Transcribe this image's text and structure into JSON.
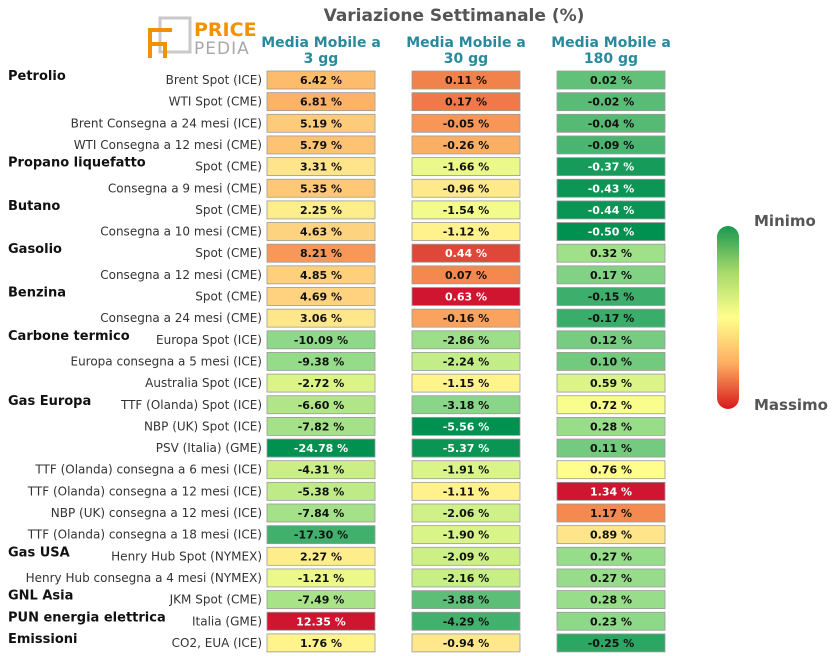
{
  "logo": {
    "line1": "PRICE",
    "line2": "PEDIA"
  },
  "chart_data": {
    "type": "heatmap",
    "title": "Variazione Settimanale (%)",
    "columns": [
      "Media Mobile a 3 gg",
      "Media Mobile a 30 gg",
      "Media Mobile a 180 gg"
    ],
    "column_lines": [
      [
        "Media Mobile a",
        "3 gg"
      ],
      [
        "Media Mobile a",
        "30 gg"
      ],
      [
        "Media Mobile a",
        "180 gg"
      ]
    ],
    "groups": [
      {
        "name": "Petrolio",
        "rows": [
          {
            "label": "Brent Spot (ICE)",
            "values": [
              6.42,
              0.11,
              0.02
            ]
          },
          {
            "label": "WTI Spot (CME)",
            "values": [
              6.81,
              0.17,
              -0.02
            ]
          },
          {
            "label": "Brent Consegna a 24 mesi (ICE)",
            "values": [
              5.19,
              -0.05,
              -0.04
            ]
          },
          {
            "label": "WTI Consegna a 12 mesi (CME)",
            "values": [
              5.79,
              -0.26,
              -0.09
            ]
          }
        ]
      },
      {
        "name": "Propano liquefatto",
        "rows": [
          {
            "label": "Spot (CME)",
            "values": [
              3.31,
              -1.66,
              -0.37
            ]
          },
          {
            "label": "Consegna a 9 mesi (CME)",
            "values": [
              5.35,
              -0.96,
              -0.43
            ]
          }
        ]
      },
      {
        "name": "Butano",
        "rows": [
          {
            "label": "Spot (CME)",
            "values": [
              2.25,
              -1.54,
              -0.44
            ]
          },
          {
            "label": "Consegna a 10 mesi (CME)",
            "values": [
              4.63,
              -1.12,
              -0.5
            ]
          }
        ]
      },
      {
        "name": "Gasolio",
        "rows": [
          {
            "label": "Spot (CME)",
            "values": [
              8.21,
              0.44,
              0.32
            ]
          },
          {
            "label": "Consegna a 12 mesi (CME)",
            "values": [
              4.85,
              0.07,
              0.17
            ]
          }
        ]
      },
      {
        "name": "Benzina",
        "rows": [
          {
            "label": "Spot (CME)",
            "values": [
              4.69,
              0.63,
              -0.15
            ]
          },
          {
            "label": "Consegna a 24 mesi (CME)",
            "values": [
              3.06,
              -0.16,
              -0.17
            ]
          }
        ]
      },
      {
        "name": "Carbone termico",
        "rows": [
          {
            "label": "Europa Spot (ICE)",
            "values": [
              -10.09,
              -2.86,
              0.12
            ]
          },
          {
            "label": "Europa consegna a 5 mesi (ICE)",
            "values": [
              -9.38,
              -2.24,
              0.1
            ]
          },
          {
            "label": "Australia Spot (ICE)",
            "values": [
              -2.72,
              -1.15,
              0.59
            ]
          }
        ]
      },
      {
        "name": "Gas Europa",
        "rows": [
          {
            "label": "TTF (Olanda) Spot (ICE)",
            "values": [
              -6.6,
              -3.18,
              0.72
            ]
          },
          {
            "label": "NBP (UK) Spot (ICE)",
            "values": [
              -7.82,
              -5.56,
              0.28
            ]
          },
          {
            "label": "PSV (Italia) (GME)",
            "values": [
              -24.78,
              -5.37,
              0.11
            ]
          },
          {
            "label": "TTF (Olanda) consegna a 6 mesi (ICE)",
            "values": [
              -4.31,
              -1.91,
              0.76
            ]
          },
          {
            "label": "TTF (Olanda) consegna a 12 mesi (ICE)",
            "values": [
              -5.38,
              -1.11,
              1.34
            ]
          },
          {
            "label": "NBP (UK) consegna a 12 mesi (ICE)",
            "values": [
              -7.84,
              -2.06,
              1.17
            ]
          },
          {
            "label": "TTF (Olanda) consegna a 18 mesi (ICE)",
            "values": [
              -17.3,
              -1.9,
              0.89
            ]
          }
        ]
      },
      {
        "name": "Gas USA",
        "rows": [
          {
            "label": "Henry Hub Spot (NYMEX)",
            "values": [
              2.27,
              -2.09,
              0.27
            ]
          },
          {
            "label": "Henry Hub consegna a 4 mesi (NYMEX)",
            "values": [
              -1.21,
              -2.16,
              0.27
            ]
          }
        ]
      },
      {
        "name": "GNL Asia",
        "rows": [
          {
            "label": "JKM Spot (CME)",
            "values": [
              -7.49,
              -3.88,
              0.28
            ]
          }
        ]
      },
      {
        "name": "PUN energia elettrica",
        "rows": [
          {
            "label": "Italia (GME)",
            "values": [
              12.35,
              -4.29,
              0.23
            ]
          }
        ]
      },
      {
        "name": "Emissioni",
        "rows": [
          {
            "label": "CO2, EUA (ICE)",
            "values": [
              1.76,
              -0.94,
              -0.25
            ]
          }
        ]
      }
    ],
    "value_labels": [
      [
        "6.42 %",
        "0.11 %",
        "0.02 %"
      ],
      [
        "6.81 %",
        "0.17 %",
        "-0.02 %"
      ],
      [
        "5.19 %",
        "-0.05 %",
        "-0.04 %"
      ],
      [
        "5.79 %",
        "-0.26 %",
        "-0.09 %"
      ],
      [
        "3.31 %",
        "-1.66 %",
        "-0.37 %"
      ],
      [
        "5.35 %",
        "-0.96 %",
        "-0.43 %"
      ],
      [
        "2.25 %",
        "-1.54 %",
        "-0.44 %"
      ],
      [
        "4.63 %",
        "-1.12 %",
        "-0.50 %"
      ],
      [
        "8.21 %",
        "0.44 %",
        "0.32 %"
      ],
      [
        "4.85 %",
        "0.07 %",
        "0.17 %"
      ],
      [
        "4.69 %",
        "0.63 %",
        "-0.15 %"
      ],
      [
        "3.06 %",
        "-0.16 %",
        "-0.17 %"
      ],
      [
        "-10.09 %",
        "-2.86 %",
        "0.12 %"
      ],
      [
        "-9.38 %",
        "-2.24 %",
        "0.10 %"
      ],
      [
        "-2.72 %",
        "-1.15 %",
        "0.59 %"
      ],
      [
        "-6.60 %",
        "-3.18 %",
        "0.72 %"
      ],
      [
        "-7.82 %",
        "-5.56 %",
        "0.28 %"
      ],
      [
        "-24.78 %",
        "-5.37 %",
        "0.11 %"
      ],
      [
        "-4.31 %",
        "-1.91 %",
        "0.76 %"
      ],
      [
        "-5.38 %",
        "-1.11 %",
        "1.34 %"
      ],
      [
        "-7.84 %",
        "-2.06 %",
        "1.17 %"
      ],
      [
        "-17.30 %",
        "-1.90 %",
        "0.89 %"
      ],
      [
        "2.27 %",
        "-2.09 %",
        "0.27 %"
      ],
      [
        "-1.21 %",
        "-2.16 %",
        "0.27 %"
      ],
      [
        "-7.49 %",
        "-3.88 %",
        "0.28 %"
      ],
      [
        "12.35 %",
        "-4.29 %",
        "0.23 %"
      ],
      [
        "1.76 %",
        "-0.94 %",
        "-0.25 %"
      ]
    ],
    "legend": {
      "min_label": "Minimo",
      "max_label": "Massimo",
      "placement": "right"
    },
    "colors": {
      "title": "#555555",
      "column_header": "#2a8a9c",
      "scale": [
        "#1a9850",
        "#66bd63",
        "#a6d96a",
        "#d9ef8b",
        "#ffff8c",
        "#fee08b",
        "#fdae61",
        "#f46d43",
        "#d73027",
        "#c8102e"
      ],
      "logo_orange": "#f39200",
      "logo_gray": "#b0b0b0"
    }
  }
}
